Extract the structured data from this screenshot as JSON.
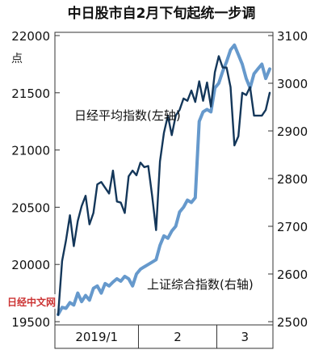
{
  "chart_data": {
    "type": "line",
    "title": "中日股市自2月下旬起统一步调",
    "left_axis": {
      "unit": "点",
      "ylim": [
        19500,
        22000
      ],
      "ticks": [
        19500,
        20000,
        20500,
        21000,
        21500,
        22000
      ],
      "tick_labels": [
        "19500",
        "20000",
        "20500",
        "21000",
        "21500",
        "22000"
      ]
    },
    "right_axis": {
      "ylim": [
        2500,
        3100
      ],
      "ticks": [
        2500,
        2600,
        2700,
        2800,
        2900,
        3000,
        3100
      ],
      "tick_labels": [
        "2500",
        "2600",
        "2700",
        "2800",
        "2900",
        "3000",
        "3100"
      ]
    },
    "x_axis": {
      "type": "trading-day index",
      "range": [
        0,
        54
      ],
      "segments": [
        {
          "label": "2019/1",
          "start": 0,
          "end": 20.5
        },
        {
          "label": "2",
          "start": 20.5,
          "end": 40.5
        },
        {
          "label": "3",
          "start": 40.5,
          "end": 54
        }
      ]
    },
    "series": [
      {
        "name": "日经平均指数(左轴)",
        "axis": "left",
        "color": "#14375a",
        "points": [
          [
            0,
            19560
          ],
          [
            1,
            20030
          ],
          [
            2,
            20210
          ],
          [
            3,
            20430
          ],
          [
            4,
            20160
          ],
          [
            5,
            20380
          ],
          [
            6,
            20510
          ],
          [
            7,
            20600
          ],
          [
            8,
            20350
          ],
          [
            9,
            20450
          ],
          [
            10,
            20700
          ],
          [
            11,
            20720
          ],
          [
            12,
            20670
          ],
          [
            13,
            20620
          ],
          [
            14,
            20820
          ],
          [
            15,
            20550
          ],
          [
            16,
            20540
          ],
          [
            17,
            20450
          ],
          [
            18,
            20770
          ],
          [
            19,
            20820
          ],
          [
            20,
            20780
          ],
          [
            21,
            20890
          ],
          [
            22,
            20850
          ],
          [
            23,
            20860
          ],
          [
            24,
            20600
          ],
          [
            25,
            20300
          ],
          [
            26,
            20900
          ],
          [
            27,
            21150
          ],
          [
            28,
            21300
          ],
          [
            29,
            21130
          ],
          [
            30,
            21300
          ],
          [
            31,
            21350
          ],
          [
            32,
            21450
          ],
          [
            33,
            21430
          ],
          [
            34,
            21520
          ],
          [
            35,
            21420
          ],
          [
            36,
            21600
          ],
          [
            37,
            21430
          ],
          [
            38,
            21590
          ],
          [
            39,
            21380
          ],
          [
            40,
            21680
          ],
          [
            41,
            21820
          ],
          [
            42,
            21720
          ],
          [
            43,
            21720
          ],
          [
            44,
            21550
          ],
          [
            45,
            21040
          ],
          [
            46,
            21120
          ],
          [
            47,
            21500
          ],
          [
            48,
            21480
          ],
          [
            49,
            21550
          ],
          [
            50,
            21300
          ],
          [
            51,
            21300
          ],
          [
            52,
            21300
          ],
          [
            53,
            21350
          ],
          [
            54,
            21500
          ]
        ]
      },
      {
        "name": "上证综合指数(右轴)",
        "axis": "right",
        "color": "#6699cc",
        "points": [
          [
            0,
            2515
          ],
          [
            1,
            2530
          ],
          [
            2,
            2528
          ],
          [
            3,
            2540
          ],
          [
            4,
            2535
          ],
          [
            5,
            2560
          ],
          [
            6,
            2542
          ],
          [
            7,
            2555
          ],
          [
            8,
            2545
          ],
          [
            9,
            2570
          ],
          [
            10,
            2575
          ],
          [
            11,
            2560
          ],
          [
            12,
            2580
          ],
          [
            13,
            2575
          ],
          [
            14,
            2583
          ],
          [
            15,
            2590
          ],
          [
            16,
            2585
          ],
          [
            17,
            2595
          ],
          [
            18,
            2590
          ],
          [
            19,
            2575
          ],
          [
            20,
            2600
          ],
          [
            21,
            2610
          ],
          [
            22,
            2615
          ],
          [
            23,
            2620
          ],
          [
            24,
            2625
          ],
          [
            25,
            2630
          ],
          [
            26,
            2660
          ],
          [
            27,
            2680
          ],
          [
            28,
            2675
          ],
          [
            29,
            2690
          ],
          [
            30,
            2700
          ],
          [
            31,
            2730
          ],
          [
            32,
            2740
          ],
          [
            33,
            2755
          ],
          [
            34,
            2750
          ],
          [
            35,
            2760
          ],
          [
            36,
            2920
          ],
          [
            37,
            2940
          ],
          [
            38,
            2945
          ],
          [
            39,
            2940
          ],
          [
            40,
            2990
          ],
          [
            41,
            3000
          ],
          [
            42,
            3025
          ],
          [
            43,
            3045
          ],
          [
            44,
            3070
          ],
          [
            45,
            3080
          ],
          [
            46,
            3060
          ],
          [
            47,
            3040
          ],
          [
            48,
            3010
          ],
          [
            49,
            2990
          ],
          [
            50,
            3020
          ],
          [
            51,
            3030
          ],
          [
            52,
            3040
          ],
          [
            53,
            3010
          ],
          [
            54,
            3030
          ]
        ]
      }
    ],
    "grid": false
  },
  "watermark_text": "日经中文网"
}
